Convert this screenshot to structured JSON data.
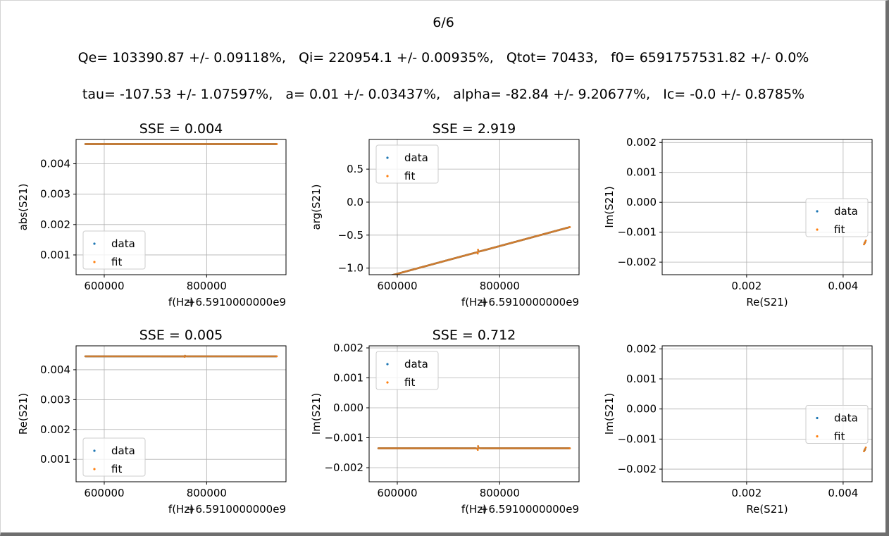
{
  "figure": {
    "counter": "6/6",
    "q_line": "Qe= 103390.87 +/- 0.09118%,   Qi= 220954.1 +/- 0.00935%,   Qtot= 70433,   f0= 6591757531.82 +/- 0.0%",
    "param_line": "tau= -107.53 +/- 1.07597%,   a= 0.01 +/- 0.03437%,   alpha= -82.84 +/- 9.20677%,   Ic= -0.0 +/- 0.8785%"
  },
  "colors": {
    "data": "#1f77b4",
    "fit": "#ff7f0e",
    "grid": "#b0b0b0",
    "axis": "#000000"
  },
  "resonance": {
    "x_offset_label": "+6.5910000000e9",
    "f_start": 563000,
    "f_end": 937000,
    "f0": 757531,
    "Qtot": 70433,
    "Qe": 103390.87,
    "note_units": "x values are Hz relative to 6.591e9"
  },
  "chart_data": [
    {
      "type": "scatter",
      "title": "SSE = 0.004",
      "xlabel": "f(Hz)",
      "ylabel": "abs(S21)",
      "x_offset": "+6.5910000000e9",
      "xlim": [
        545000,
        955000
      ],
      "ylim": [
        0.00035,
        0.0048
      ],
      "xticks": [
        600000,
        800000
      ],
      "xtick_labels": [
        "600000",
        "800000"
      ],
      "yticks": [
        0.001,
        0.002,
        0.003,
        0.004
      ],
      "ytick_labels": [
        "0.001",
        "0.002",
        "0.003",
        "0.004"
      ],
      "legend": "lower-left",
      "grid": true,
      "component": "abs",
      "series": [
        {
          "name": "data"
        },
        {
          "name": "fit"
        }
      ]
    },
    {
      "type": "scatter",
      "title": "SSE = 2.919",
      "xlabel": "f(Hz)",
      "ylabel": "arg(S21)",
      "x_offset": "+6.5910000000e9",
      "xlim": [
        545000,
        955000
      ],
      "ylim": [
        -1.1,
        0.95
      ],
      "xticks": [
        600000,
        800000
      ],
      "xtick_labels": [
        "600000",
        "800000"
      ],
      "yticks": [
        -1.0,
        -0.5,
        0.0,
        0.5
      ],
      "ytick_labels": [
        "−1.0",
        "−0.5",
        "0.0",
        "0.5"
      ],
      "legend": "top-left",
      "grid": true,
      "component": "arg",
      "series": [
        {
          "name": "data"
        },
        {
          "name": "fit"
        }
      ]
    },
    {
      "type": "scatter",
      "title": "",
      "xlabel": "Re(S21)",
      "ylabel": "Im(S21)",
      "xlim": [
        0.00025,
        0.0046
      ],
      "ylim": [
        -0.00242,
        0.0021
      ],
      "xticks": [
        0.002,
        0.004
      ],
      "xtick_labels": [
        "0.002",
        "0.004"
      ],
      "yticks": [
        -0.002,
        -0.001,
        0.0,
        0.001,
        0.002
      ],
      "ytick_labels": [
        "−0.002",
        "−0.001",
        "0.000",
        "0.001",
        "0.002"
      ],
      "legend": "center-right",
      "grid": true,
      "component": "iq",
      "series": [
        {
          "name": "data"
        },
        {
          "name": "fit"
        }
      ]
    },
    {
      "type": "scatter",
      "title": "SSE = 0.005",
      "xlabel": "f(Hz)",
      "ylabel": "Re(S21)",
      "x_offset": "+6.5910000000e9",
      "xlim": [
        545000,
        955000
      ],
      "ylim": [
        0.00025,
        0.0048
      ],
      "xticks": [
        600000,
        800000
      ],
      "xtick_labels": [
        "600000",
        "800000"
      ],
      "yticks": [
        0.001,
        0.002,
        0.003,
        0.004
      ],
      "ytick_labels": [
        "0.001",
        "0.002",
        "0.003",
        "0.004"
      ],
      "legend": "lower-left",
      "grid": true,
      "component": "re",
      "series": [
        {
          "name": "data"
        },
        {
          "name": "fit"
        }
      ]
    },
    {
      "type": "scatter",
      "title": "SSE = 0.712",
      "xlabel": "f(Hz)",
      "ylabel": "Im(S21)",
      "x_offset": "+6.5910000000e9",
      "xlim": [
        545000,
        955000
      ],
      "ylim": [
        -0.00247,
        0.00207
      ],
      "xticks": [
        600000,
        800000
      ],
      "xtick_labels": [
        "600000",
        "800000"
      ],
      "yticks": [
        -0.002,
        -0.001,
        0.0,
        0.001,
        0.002
      ],
      "ytick_labels": [
        "−0.002",
        "−0.001",
        "0.000",
        "0.001",
        "0.002"
      ],
      "legend": "top-left",
      "grid": true,
      "component": "im",
      "series": [
        {
          "name": "data"
        },
        {
          "name": "fit"
        }
      ]
    },
    {
      "type": "scatter",
      "title": "",
      "xlabel": "Re(S21)",
      "ylabel": "Im(S21)",
      "xlim": [
        0.00025,
        0.0046
      ],
      "ylim": [
        -0.00242,
        0.0021
      ],
      "xticks": [
        0.002,
        0.004
      ],
      "xtick_labels": [
        "0.002",
        "0.004"
      ],
      "yticks": [
        -0.002,
        -0.001,
        0.0,
        0.001,
        0.002
      ],
      "ytick_labels": [
        "−0.002",
        "−0.001",
        "0.000",
        "0.001",
        "0.002"
      ],
      "legend": "center-right",
      "grid": true,
      "component": "iq",
      "series": [
        {
          "name": "data"
        },
        {
          "name": "fit"
        }
      ]
    }
  ]
}
